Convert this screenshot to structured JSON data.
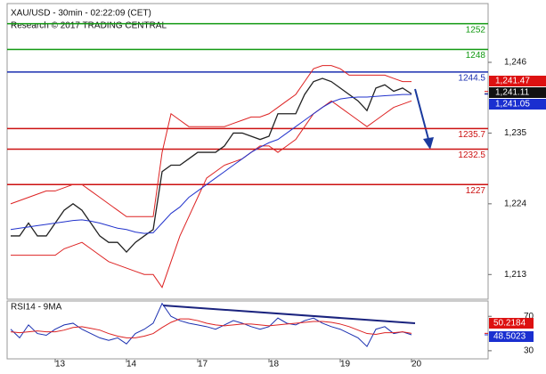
{
  "chart_data": {
    "type": "line",
    "title": "XAU/USD - 30min - 02:22:09 (CET)",
    "subtitle": "Research © 2017 TRADING CENTRAL",
    "categories": [
      null,
      null,
      null,
      null,
      null,
      "13",
      null,
      null,
      null,
      null,
      null,
      null,
      null,
      "14",
      null,
      null,
      null,
      null,
      null,
      null,
      null,
      "17",
      null,
      null,
      null,
      null,
      null,
      null,
      null,
      "18",
      null,
      null,
      null,
      null,
      null,
      null,
      null,
      "19",
      null,
      null,
      null,
      null,
      null,
      null,
      null,
      "20"
    ],
    "ylim": [
      1209.3,
      1255
    ],
    "yticks": [
      {
        "value": 1246,
        "label": "1,246"
      },
      {
        "value": 1235,
        "label": "1,235"
      },
      {
        "value": 1224,
        "label": "1,224"
      },
      {
        "value": 1213,
        "label": "1,213"
      }
    ],
    "series": [
      {
        "name": "Price",
        "color": "#222222",
        "values": [
          1219,
          1219,
          1221,
          1219,
          1219,
          1221,
          1223,
          1224,
          1223,
          1221,
          1219,
          1218,
          1218,
          1216.5,
          1218,
          1219,
          1220,
          1229,
          1230,
          1230,
          1231,
          1232,
          1232,
          1232,
          1233,
          1235,
          1235,
          1234.5,
          1234,
          1234.5,
          1238,
          1238,
          1238,
          1241,
          1243,
          1243.5,
          1243,
          1242,
          1241,
          1240,
          1238.5,
          1242,
          1242.5,
          1241.5,
          1242,
          1241.1
        ]
      },
      {
        "name": "Upper band",
        "color": "#dd2222",
        "values": [
          1224,
          1224.5,
          1225,
          1225.5,
          1226,
          1226,
          1226.5,
          1227,
          1227,
          1226,
          1225,
          1224,
          1223,
          1222,
          1222,
          1222,
          1222,
          1232,
          1238,
          1237,
          1236,
          1236,
          1236,
          1236,
          1236,
          1236.5,
          1237,
          1237.5,
          1237.5,
          1238,
          1239,
          1240,
          1241,
          1243,
          1245,
          1245.5,
          1245.5,
          1245,
          1244,
          1244,
          1244,
          1244,
          1244,
          1243.5,
          1243,
          1243
        ]
      },
      {
        "name": "Lower band",
        "color": "#dd2222",
        "values": [
          1216,
          1216,
          1216,
          1216,
          1216,
          1216,
          1217,
          1217.5,
          1218,
          1217,
          1216,
          1215,
          1214.5,
          1214,
          1213.5,
          1213,
          1213,
          1211,
          1215,
          1219,
          1222,
          1225,
          1228,
          1229,
          1230,
          1230.5,
          1231,
          1232,
          1233,
          1233,
          1232,
          1233,
          1234,
          1236,
          1238,
          1239,
          1240,
          1239,
          1238,
          1237,
          1236,
          1237,
          1238,
          1239,
          1239.5,
          1240
        ]
      },
      {
        "name": "MA",
        "color": "#2233cc",
        "values": [
          1220,
          1220.2,
          1220.4,
          1220.6,
          1220.8,
          1221,
          1221.2,
          1221.4,
          1221.5,
          1221.3,
          1221,
          1220.6,
          1220.2,
          1220,
          1219.6,
          1219.4,
          1219.5,
          1221,
          1222.5,
          1223.5,
          1225,
          1226,
          1227,
          1228,
          1229,
          1230,
          1231,
          1232,
          1232.8,
          1233.5,
          1234,
          1235,
          1236,
          1237,
          1238,
          1239,
          1239.8,
          1240.3,
          1240.5,
          1240.6,
          1240.6,
          1240.7,
          1240.8,
          1240.9,
          1241,
          1241
        ]
      }
    ],
    "levels": [
      {
        "value": 1252,
        "color": "#119911"
      },
      {
        "value": 1248,
        "color": "#119911"
      },
      {
        "value": 1244.5,
        "color": "#1a2fb0"
      },
      {
        "value": 1235.7,
        "color": "#cc1111"
      },
      {
        "value": 1232.5,
        "color": "#cc1111"
      },
      {
        "value": 1227,
        "color": "#cc1111"
      }
    ],
    "price_tags": [
      {
        "value": 1241.47,
        "label": "1,241.47",
        "color": "#dd1111"
      },
      {
        "value": 1241.11,
        "label": "1,241.11",
        "color": "#111111"
      },
      {
        "value": 1241.05,
        "label": "1,241.05",
        "color": "#1a2fd0"
      }
    ],
    "rsi": {
      "title": "RSI14 - 9MA",
      "ylim": [
        21.6,
        86.8
      ],
      "yticks": [
        70,
        30
      ],
      "series": [
        {
          "name": "RSI",
          "color": "#1a2fb0",
          "values": [
            55,
            45,
            60,
            50,
            48,
            55,
            60,
            62,
            55,
            50,
            45,
            42,
            45,
            38,
            50,
            55,
            62,
            85,
            70,
            65,
            62,
            60,
            58,
            55,
            60,
            65,
            62,
            58,
            55,
            58,
            68,
            62,
            60,
            65,
            68,
            62,
            58,
            55,
            50,
            45,
            35,
            55,
            58,
            50,
            52,
            48.5
          ]
        },
        {
          "name": "MA",
          "color": "#dd2222",
          "values": [
            52,
            51,
            52,
            53,
            52,
            52,
            54,
            57,
            58,
            56,
            54,
            50,
            47,
            45,
            45,
            47,
            50,
            57,
            63,
            67,
            67,
            65,
            62,
            60,
            59,
            60,
            61,
            61,
            60,
            59,
            60,
            61,
            62,
            63,
            64,
            64,
            63,
            61,
            58,
            54,
            50,
            49,
            51,
            51,
            52,
            50.2
          ]
        }
      ],
      "tags": [
        {
          "value": 50.2184,
          "color": "#dd1111"
        },
        {
          "value": 48.5023,
          "color": "#1a2fd0"
        }
      ]
    }
  }
}
